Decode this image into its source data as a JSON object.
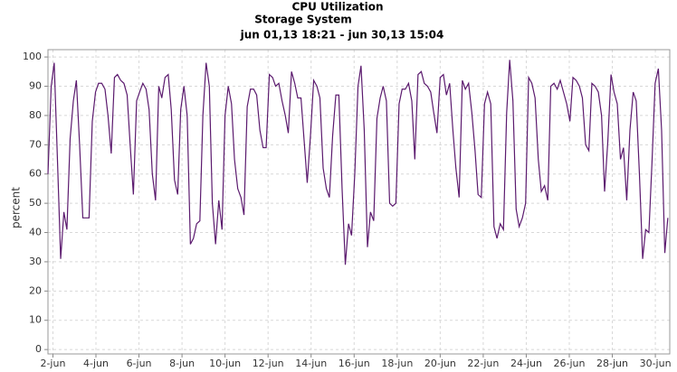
{
  "chart_data": {
    "type": "line",
    "title": "CPU Utilization",
    "subtitle": "Storage System",
    "time_range": "jun 01,13 18:21 - jun 30,13 15:04",
    "y_label": "percent",
    "x": [
      1.77,
      1.92,
      2.06,
      2.21,
      2.36,
      2.51,
      2.65,
      2.8,
      2.95,
      3.09,
      3.24,
      3.39,
      3.53,
      3.68,
      3.83,
      3.98,
      4.12,
      4.27,
      4.42,
      4.56,
      4.71,
      4.86,
      5.0,
      5.15,
      5.3,
      5.45,
      5.59,
      5.74,
      5.89,
      6.03,
      6.18,
      6.33,
      6.47,
      6.62,
      6.77,
      6.92,
      7.06,
      7.21,
      7.36,
      7.5,
      7.65,
      7.8,
      7.94,
      8.09,
      8.24,
      8.39,
      8.53,
      8.68,
      8.83,
      8.97,
      9.12,
      9.27,
      9.41,
      9.56,
      9.71,
      9.86,
      10.0,
      10.15,
      10.3,
      10.44,
      10.59,
      10.74,
      10.88,
      11.03,
      11.18,
      11.33,
      11.47,
      11.62,
      11.77,
      11.91,
      12.06,
      12.21,
      12.35,
      12.5,
      12.65,
      12.8,
      12.94,
      13.09,
      13.24,
      13.38,
      13.53,
      13.68,
      13.82,
      13.97,
      14.12,
      14.27,
      14.41,
      14.56,
      14.71,
      14.85,
      15.0,
      15.15,
      15.29,
      15.44,
      15.59,
      15.74,
      15.88,
      16.03,
      16.18,
      16.32,
      16.47,
      16.62,
      16.76,
      16.91,
      17.06,
      17.21,
      17.35,
      17.5,
      17.65,
      17.79,
      17.94,
      18.09,
      18.23,
      18.38,
      18.53,
      18.68,
      18.82,
      18.97,
      19.12,
      19.26,
      19.41,
      19.56,
      19.7,
      19.85,
      20.0,
      20.15,
      20.29,
      20.44,
      20.59,
      20.73,
      20.88,
      21.03,
      21.17,
      21.32,
      21.47,
      21.62,
      21.76,
      21.91,
      22.06,
      22.2,
      22.35,
      22.5,
      22.64,
      22.79,
      22.94,
      23.09,
      23.23,
      23.38,
      23.53,
      23.67,
      23.82,
      23.97,
      24.11,
      24.26,
      24.41,
      24.56,
      24.7,
      24.85,
      25.0,
      25.14,
      25.29,
      25.44,
      25.58,
      25.73,
      25.88,
      26.03,
      26.17,
      26.32,
      26.47,
      26.61,
      26.76,
      26.91,
      27.05,
      27.2,
      27.35,
      27.5,
      27.64,
      27.79,
      27.94,
      28.08,
      28.23,
      28.38,
      28.52,
      28.67,
      28.82,
      28.97,
      29.11,
      29.26,
      29.41,
      29.55,
      29.7,
      29.85,
      29.99,
      30.14,
      30.29,
      30.44,
      30.58
    ],
    "series": [
      {
        "name": "CPU Utilization",
        "color": "#5b1a6e",
        "values": [
          60,
          90,
          98,
          65,
          31,
          47,
          41,
          72,
          85,
          92,
          70,
          45,
          45,
          45,
          78,
          88,
          91,
          91,
          89,
          80,
          67,
          93,
          94,
          92,
          91,
          87,
          70,
          53,
          85,
          88,
          91,
          89,
          82,
          60,
          51,
          90,
          86,
          93,
          94,
          82,
          58,
          53,
          82,
          90,
          80,
          36,
          38,
          43,
          44,
          80,
          98,
          90,
          50,
          36,
          51,
          41,
          80,
          90,
          84,
          65,
          55,
          52,
          46,
          83,
          89,
          89,
          87,
          75,
          69,
          69,
          94,
          93,
          90,
          91,
          85,
          80,
          74,
          95,
          91,
          86,
          86,
          71,
          57,
          73,
          92,
          90,
          86,
          62,
          55,
          52,
          73,
          87,
          87,
          55,
          29,
          43,
          39,
          60,
          90,
          97,
          75,
          35,
          47,
          44,
          79,
          86,
          90,
          85,
          50,
          49,
          50,
          84,
          89,
          89,
          91,
          85,
          65,
          94,
          95,
          91,
          90,
          88,
          81,
          74,
          93,
          94,
          87,
          91,
          75,
          62,
          52,
          92,
          89,
          91,
          81,
          68,
          53,
          52,
          84,
          88,
          84,
          42,
          38,
          43,
          41,
          81,
          99,
          85,
          48,
          42,
          45,
          50,
          93,
          91,
          86,
          65,
          54,
          56,
          51,
          90,
          91,
          89,
          92,
          88,
          84,
          78,
          93,
          92,
          90,
          86,
          70,
          68,
          91,
          90,
          88,
          80,
          54,
          71,
          94,
          88,
          84,
          65,
          69,
          51,
          75,
          88,
          85,
          60,
          31,
          41,
          40,
          65,
          91,
          96,
          75,
          33,
          45
        ]
      }
    ],
    "xlim": [
      1.77,
      30.67
    ],
    "xticks": [
      {
        "value": 2,
        "label": "2-jun"
      },
      {
        "value": 4,
        "label": "4-jun"
      },
      {
        "value": 6,
        "label": "6-jun"
      },
      {
        "value": 8,
        "label": "8-jun"
      },
      {
        "value": 10,
        "label": "10-jun"
      },
      {
        "value": 12,
        "label": "12-jun"
      },
      {
        "value": 14,
        "label": "14-jun"
      },
      {
        "value": 16,
        "label": "16-jun"
      },
      {
        "value": 18,
        "label": "18-jun"
      },
      {
        "value": 20,
        "label": "20-jun"
      },
      {
        "value": 22,
        "label": "22-jun"
      },
      {
        "value": 24,
        "label": "24-jun"
      },
      {
        "value": 26,
        "label": "26-jun"
      },
      {
        "value": 28,
        "label": "28-jun"
      },
      {
        "value": 30,
        "label": "30-jun"
      }
    ],
    "ylim": [
      -1.5,
      102.5
    ],
    "yticks": [
      0,
      10,
      20,
      30,
      40,
      50,
      60,
      70,
      80,
      90,
      100
    ],
    "grid": true
  }
}
